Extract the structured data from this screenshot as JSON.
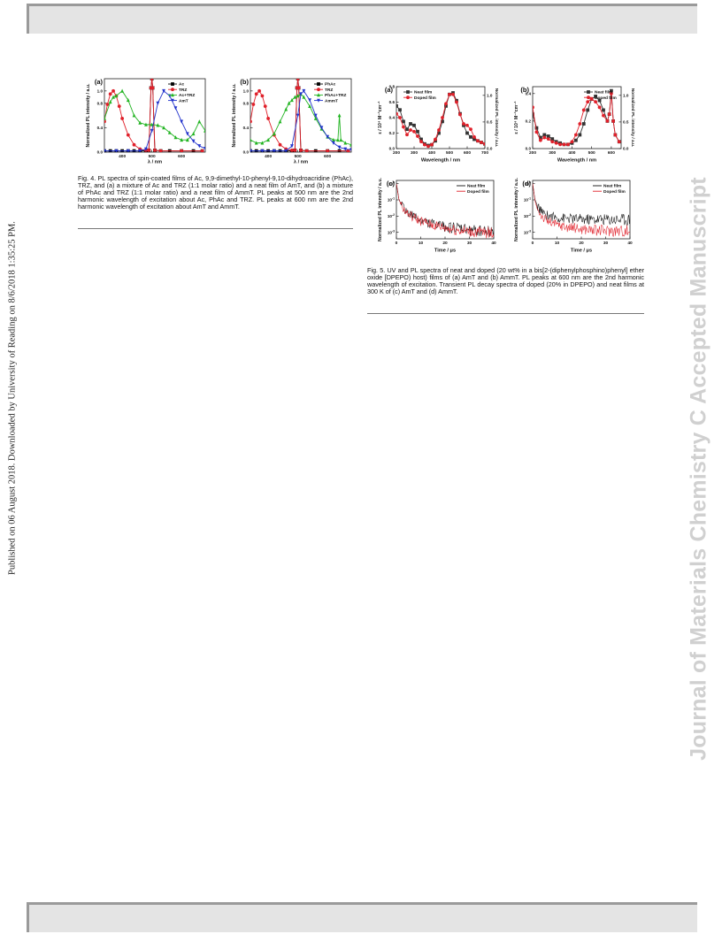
{
  "page": {
    "side_watermark": "Published on 06 August 2018. Downloaded by University of Reading on 8/6/2018 1:35:25 PM.",
    "journal_watermark": "Journal of Materials Chemistry C Accepted Manuscript"
  },
  "fig4": {
    "caption": "Fig. 4. PL spectra of spin-coated films of Ac, 9,9-dimethyl-10-phenyl-9,10-dihydroacridine (PhAc), TRZ, and (a) a mixture of Ac and TRZ (1:1 molar ratio) and a neat film of AmT, and (b) a mixture of PhAc and TRZ (1:1 molar ratio) and a neat film of AmmT. PL peaks at 500 nm are the 2nd harmonic wavelength of excitation about Ac, PhAc and TRZ. PL peaks at 600 nm are the 2nd harmonic wavelength of excitation about AmT and AmmT."
  },
  "fig5": {
    "caption": "Fig. 5. UV and PL spectra of neat and doped (20 wt% in a bis[2-(diphenylphosphino)phenyl] ether oxide [DPEPO) host) films of (a) AmT and (b) AmmT. PL peaks at 600 nm are the 2nd harmonic wavelength of excitation. Transient PL decay spectra of doped (20% in DPEPO) and neat films at 300 K of (c) AmT and (d) AmmT."
  },
  "chart_data": [
    {
      "panel": "(a)",
      "type": "line",
      "xlabel": "λ / nm",
      "ylabel": "Normalized PL intensity / a.u.",
      "xlim": [
        340,
        680
      ],
      "ylim": [
        0,
        1.2
      ],
      "xticks": [
        400,
        500,
        600
      ],
      "yticks": [
        0.0,
        0.4,
        0.8,
        1.0
      ],
      "ytick_labels": [
        "0.0",
        "0.4",
        "0.8",
        "1.0"
      ],
      "legend_position": "top-right",
      "series": [
        {
          "name": "Ac",
          "color": "#000000",
          "marker": "square",
          "x": [
            340,
            360,
            380,
            400,
            420,
            440,
            460,
            480,
            490,
            497,
            500,
            503,
            510,
            530,
            560,
            600,
            640,
            670
          ],
          "y": [
            0.02,
            0.02,
            0.02,
            0.02,
            0.02,
            0.02,
            0.02,
            0.02,
            0.03,
            1.05,
            1.2,
            1.05,
            0.03,
            0.02,
            0.02,
            0.02,
            0.02,
            0.02
          ]
        },
        {
          "name": "TRZ",
          "color": "#e0202a",
          "marker": "circle",
          "x": [
            340,
            350,
            360,
            370,
            380,
            390,
            400,
            420,
            440,
            460,
            480,
            490,
            497,
            500,
            503,
            510,
            530,
            600,
            670
          ],
          "y": [
            0.5,
            0.78,
            0.95,
            1.0,
            0.92,
            0.75,
            0.55,
            0.28,
            0.12,
            0.05,
            0.03,
            0.03,
            1.05,
            1.2,
            1.05,
            0.03,
            0.02,
            0.02,
            0.02
          ]
        },
        {
          "name": "Ac+TRZ",
          "color": "#22b422",
          "marker": "triangle-up",
          "x": [
            340,
            360,
            370,
            380,
            400,
            420,
            440,
            460,
            480,
            500,
            520,
            540,
            560,
            580,
            600,
            620,
            640,
            660,
            680
          ],
          "y": [
            0.55,
            0.82,
            0.9,
            0.92,
            1.0,
            0.85,
            0.6,
            0.48,
            0.45,
            0.45,
            0.44,
            0.4,
            0.32,
            0.24,
            0.2,
            0.2,
            0.3,
            0.5,
            0.35
          ]
        },
        {
          "name": "AmT",
          "color": "#2233cc",
          "marker": "triangle-down",
          "x": [
            340,
            380,
            420,
            460,
            480,
            500,
            520,
            540,
            560,
            580,
            600,
            620,
            640,
            660,
            680
          ],
          "y": [
            0.02,
            0.02,
            0.02,
            0.02,
            0.05,
            0.35,
            0.8,
            1.0,
            0.92,
            0.72,
            0.5,
            0.3,
            0.18,
            0.1,
            0.06
          ]
        }
      ]
    },
    {
      "panel": "(b)",
      "type": "line",
      "xlabel": "λ / nm",
      "ylabel": "Normalized PL intensity / a.u.",
      "xlim": [
        340,
        680
      ],
      "ylim": [
        0,
        1.2
      ],
      "xticks": [
        400,
        500,
        600
      ],
      "yticks": [
        0.0,
        0.4,
        0.8,
        1.0
      ],
      "ytick_labels": [
        "0.0",
        "0.4",
        "0.8",
        "1.0"
      ],
      "legend_position": "top-right",
      "series": [
        {
          "name": "PhAc",
          "color": "#000000",
          "marker": "square",
          "x": [
            340,
            360,
            380,
            400,
            420,
            440,
            460,
            480,
            490,
            497,
            500,
            503,
            510,
            530,
            560,
            600,
            640,
            670
          ],
          "y": [
            0.02,
            0.02,
            0.02,
            0.02,
            0.02,
            0.02,
            0.02,
            0.02,
            0.03,
            1.05,
            1.2,
            1.05,
            0.03,
            0.02,
            0.02,
            0.02,
            0.02,
            0.02
          ]
        },
        {
          "name": "TRZ",
          "color": "#e0202a",
          "marker": "circle",
          "x": [
            340,
            350,
            360,
            370,
            380,
            390,
            400,
            420,
            440,
            460,
            480,
            490,
            497,
            500,
            503,
            510,
            530,
            600,
            670
          ],
          "y": [
            0.5,
            0.78,
            0.95,
            1.0,
            0.92,
            0.75,
            0.55,
            0.28,
            0.12,
            0.05,
            0.03,
            0.03,
            1.05,
            1.2,
            1.05,
            0.03,
            0.02,
            0.02,
            0.02
          ]
        },
        {
          "name": "PhAc+TRZ",
          "color": "#22b422",
          "marker": "triangle-up",
          "x": [
            340,
            360,
            380,
            400,
            420,
            440,
            460,
            470,
            480,
            490,
            500,
            510,
            520,
            540,
            560,
            580,
            600,
            620,
            635,
            640,
            645,
            660,
            680
          ],
          "y": [
            0.2,
            0.15,
            0.15,
            0.2,
            0.3,
            0.5,
            0.7,
            0.8,
            0.85,
            0.9,
            0.92,
            0.95,
            0.9,
            0.75,
            0.55,
            0.38,
            0.25,
            0.2,
            0.2,
            0.6,
            0.2,
            0.15,
            0.12
          ]
        },
        {
          "name": "AmmT",
          "color": "#2233cc",
          "marker": "triangle-down",
          "x": [
            340,
            380,
            420,
            460,
            480,
            500,
            510,
            520,
            540,
            560,
            580,
            600,
            620,
            640,
            660,
            680
          ],
          "y": [
            0.02,
            0.02,
            0.02,
            0.02,
            0.1,
            0.6,
            0.95,
            1.0,
            0.85,
            0.6,
            0.4,
            0.25,
            0.15,
            0.08,
            0.05,
            0.04
          ]
        }
      ]
    },
    {
      "panel": "(a)",
      "type": "line",
      "xlabel": "Wavelength / nm",
      "ylabel": "ε / 10⁴ M⁻¹cm⁻¹",
      "ylabel_right": "Normalized PL intensity / a.u.",
      "xlim": [
        200,
        700
      ],
      "ylim": [
        0,
        0.8
      ],
      "xticks": [
        200,
        300,
        400,
        500,
        600,
        700
      ],
      "yticks": [
        0.0,
        0.2,
        0.4,
        0.6,
        0.8
      ],
      "yticks_right": [
        0.0,
        0.5,
        1.0
      ],
      "legend_position": "top-left",
      "series": [
        {
          "name": "Neat film",
          "color": "#333333",
          "marker": "square",
          "x": [
            200,
            220,
            240,
            260,
            280,
            300,
            320,
            340,
            360,
            380,
            400,
            420,
            440,
            460,
            480,
            500,
            520,
            540,
            560,
            580,
            600,
            620,
            640,
            660,
            680,
            700
          ],
          "y": [
            0.55,
            0.5,
            0.35,
            0.25,
            0.32,
            0.3,
            0.22,
            0.12,
            0.06,
            0.04,
            0.05,
            0.1,
            0.2,
            0.35,
            0.55,
            0.7,
            0.72,
            0.62,
            0.45,
            0.3,
            0.2,
            0.15,
            0.12,
            0.1,
            0.08,
            0.06
          ]
        },
        {
          "name": "Doped film",
          "color": "#e0202a",
          "marker": "circle",
          "x": [
            200,
            220,
            240,
            260,
            280,
            300,
            320,
            340,
            360,
            380,
            400,
            420,
            440,
            460,
            480,
            500,
            520,
            540,
            560,
            580,
            600,
            620,
            640,
            660,
            680,
            700
          ],
          "y": [
            0.45,
            0.4,
            0.28,
            0.18,
            0.24,
            0.22,
            0.16,
            0.09,
            0.05,
            0.03,
            0.05,
            0.12,
            0.24,
            0.4,
            0.58,
            0.7,
            0.7,
            0.6,
            0.44,
            0.32,
            0.3,
            0.25,
            0.15,
            0.1,
            0.08,
            0.06
          ]
        }
      ]
    },
    {
      "panel": "(b)",
      "type": "line",
      "xlabel": "Wavelength / nm",
      "ylabel": "ε / 10⁴ M⁻¹cm⁻¹",
      "ylabel_right": "Normalized PL intensity / a.u.",
      "xlim": [
        200,
        650
      ],
      "ylim": [
        0,
        0.45
      ],
      "xticks": [
        200,
        300,
        400,
        500,
        600
      ],
      "yticks": [
        0.0,
        0.2,
        0.4
      ],
      "yticks_right": [
        0.0,
        0.5,
        1.0
      ],
      "legend_position": "top-right",
      "series": [
        {
          "name": "Neat film",
          "color": "#333333",
          "marker": "square",
          "x": [
            200,
            220,
            240,
            260,
            280,
            300,
            320,
            340,
            360,
            380,
            400,
            420,
            440,
            460,
            480,
            500,
            520,
            540,
            560,
            580,
            590,
            600,
            610,
            620,
            640
          ],
          "y": [
            0.25,
            0.15,
            0.08,
            0.1,
            0.09,
            0.07,
            0.05,
            0.04,
            0.03,
            0.03,
            0.04,
            0.06,
            0.1,
            0.18,
            0.28,
            0.36,
            0.38,
            0.35,
            0.28,
            0.2,
            0.25,
            0.42,
            0.2,
            0.1,
            0.05
          ]
        },
        {
          "name": "Doped film",
          "color": "#e0202a",
          "marker": "circle",
          "x": [
            200,
            220,
            240,
            260,
            280,
            300,
            320,
            340,
            360,
            380,
            400,
            420,
            440,
            460,
            480,
            500,
            520,
            540,
            560,
            580,
            590,
            600,
            610,
            620,
            640
          ],
          "y": [
            0.3,
            0.12,
            0.06,
            0.08,
            0.07,
            0.05,
            0.04,
            0.03,
            0.03,
            0.03,
            0.05,
            0.1,
            0.18,
            0.28,
            0.34,
            0.36,
            0.34,
            0.3,
            0.24,
            0.2,
            0.25,
            0.4,
            0.2,
            0.1,
            0.05
          ]
        }
      ]
    },
    {
      "panel": "(c)",
      "type": "line",
      "xlabel": "Time / μs",
      "ylabel": "Normalized PL intensity / a.u.",
      "xlim": [
        0,
        40
      ],
      "ylim_log10": [
        -3.4,
        0.2
      ],
      "xticks": [
        0,
        10,
        20,
        30,
        40
      ],
      "yticks_log10": [
        -3,
        -2,
        -1,
        0
      ],
      "legend_position": "top-right",
      "series": [
        {
          "name": "Neat film",
          "color": "#111111",
          "x": [
            0,
            1,
            2,
            4,
            6,
            10,
            15,
            20,
            25,
            30,
            35,
            40
          ],
          "y_log10": [
            0,
            -0.9,
            -1.3,
            -1.7,
            -1.95,
            -2.25,
            -2.5,
            -2.65,
            -2.75,
            -2.85,
            -2.9,
            -2.95
          ]
        },
        {
          "name": "Doped film",
          "color": "#e0202a",
          "x": [
            0,
            1,
            2,
            4,
            6,
            10,
            15,
            20,
            25,
            30,
            35,
            40
          ],
          "y_log10": [
            0,
            -0.95,
            -1.35,
            -1.75,
            -2.0,
            -2.3,
            -2.55,
            -2.72,
            -2.85,
            -2.95,
            -3.0,
            -3.05
          ]
        }
      ]
    },
    {
      "panel": "(d)",
      "type": "line",
      "xlabel": "Time / μs",
      "ylabel": "Normalized PL intensity / a.u.",
      "xlim": [
        0,
        40
      ],
      "ylim_log10": [
        -3.4,
        0.2
      ],
      "xticks": [
        0,
        10,
        20,
        30,
        40
      ],
      "yticks_log10": [
        -3,
        -2,
        -1,
        0
      ],
      "legend_position": "top-right",
      "series": [
        {
          "name": "Neat film",
          "color": "#111111",
          "x": [
            0,
            1,
            2,
            4,
            6,
            10,
            15,
            20,
            25,
            30,
            35,
            40
          ],
          "y_log10": [
            0,
            -1.0,
            -1.4,
            -1.8,
            -1.95,
            -2.1,
            -2.15,
            -2.2,
            -2.2,
            -2.2,
            -2.2,
            -2.2
          ]
        },
        {
          "name": "Doped film",
          "color": "#e0202a",
          "x": [
            0,
            1,
            2,
            4,
            6,
            10,
            15,
            20,
            25,
            30,
            35,
            40
          ],
          "y_log10": [
            0,
            -1.1,
            -1.6,
            -2.05,
            -2.3,
            -2.55,
            -2.7,
            -2.8,
            -2.85,
            -2.9,
            -2.9,
            -2.9
          ]
        }
      ]
    }
  ]
}
